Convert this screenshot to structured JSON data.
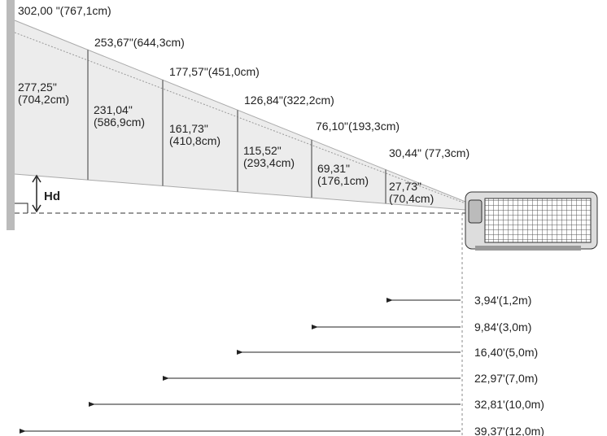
{
  "screens": [
    {
      "diagonal": "302,00 \"(767,1cm)",
      "size_inch": "277,25\"",
      "size_cm": "(704,2cm)"
    },
    {
      "diagonal": "253,67\"(644,3cm)",
      "size_inch": "231,04\"",
      "size_cm": "(586,9cm)"
    },
    {
      "diagonal": "177,57\"(451,0cm)",
      "size_inch": "161,73\"",
      "size_cm": "(410,8cm)"
    },
    {
      "diagonal": "126,84\"(322,2cm)",
      "size_inch": "115,52\"",
      "size_cm": "(293,4cm)"
    },
    {
      "diagonal": "76,10\"(193,3cm)",
      "size_inch": "69,31\"",
      "size_cm": "(176,1cm)"
    },
    {
      "diagonal": "30,44\" (77,3cm)",
      "size_inch": "27,73\"",
      "size_cm": "(70,4cm)"
    }
  ],
  "hd_label": "Hd",
  "distances": [
    "3,94'(1,2m)",
    "9,84'(3,0m)",
    "16,40'(5,0m)",
    "22,97'(7,0m)",
    "32,81'(10,0m)",
    "39,37'(12,0m)"
  ]
}
